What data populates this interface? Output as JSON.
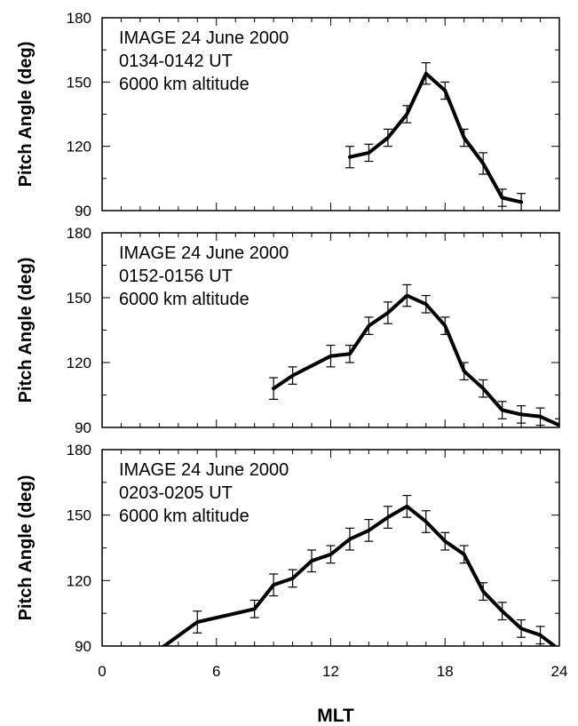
{
  "chart_data": [
    {
      "type": "line",
      "ylabel": "Pitch Angle (deg)",
      "xlim": [
        0,
        24
      ],
      "ylim": [
        90,
        180
      ],
      "yticks": [
        "90",
        "120",
        "150",
        "180"
      ],
      "xticks": [],
      "annotation": [
        "IMAGE 24 June 2000",
        "0134-0142 UT",
        "6000 km altitude"
      ],
      "series": [
        {
          "x": [
            13,
            14,
            15,
            16,
            17,
            18,
            19,
            20,
            21,
            22
          ],
          "y": [
            115,
            117,
            124,
            135,
            154,
            146,
            124,
            112,
            96,
            94
          ],
          "err": [
            5,
            4,
            4,
            4,
            5,
            4,
            4,
            5,
            4,
            4
          ]
        }
      ]
    },
    {
      "type": "line",
      "ylabel": "Pitch Angle (deg)",
      "xlim": [
        0,
        24
      ],
      "ylim": [
        90,
        180
      ],
      "yticks": [
        "90",
        "120",
        "150",
        "180"
      ],
      "xticks": [],
      "annotation": [
        "IMAGE 24 June 2000",
        "0152-0156 UT",
        "6000 km altitude"
      ],
      "series": [
        {
          "x": [
            9,
            10,
            12,
            13,
            14,
            15,
            16,
            17,
            18,
            19,
            20,
            21,
            22,
            23,
            24
          ],
          "y": [
            108,
            114,
            123,
            124,
            137,
            143,
            151,
            147,
            137,
            116,
            108,
            98,
            96,
            95,
            91
          ],
          "err": [
            5,
            4,
            5,
            4,
            4,
            5,
            5,
            4,
            4,
            4,
            4,
            4,
            4,
            4,
            3
          ]
        }
      ]
    },
    {
      "type": "line",
      "ylabel": "Pitch Angle (deg)",
      "xlim": [
        0,
        24
      ],
      "ylim": [
        90,
        180
      ],
      "yticks": [
        "90",
        "120",
        "150",
        "180"
      ],
      "xticks": [
        "0",
        "6",
        "12",
        "18",
        "24"
      ],
      "xlabel": "MLT",
      "annotation": [
        "IMAGE 24 June 2000",
        "0203-0205 UT",
        "6000 km altitude"
      ],
      "series": [
        {
          "x": [
            3.1,
            5,
            8,
            9,
            10,
            11,
            12,
            13,
            14,
            15,
            16,
            17,
            18,
            19,
            20,
            21,
            22,
            23,
            23.9
          ],
          "y": [
            89,
            101,
            107,
            118,
            121,
            129,
            132,
            139,
            143,
            149,
            154,
            147,
            138,
            132,
            115,
            106,
            98,
            95,
            89
          ],
          "err": [
            0,
            5,
            4,
            5,
            4,
            5,
            4,
            5,
            5,
            5,
            5,
            5,
            4,
            4,
            4,
            4,
            4,
            4,
            0
          ]
        }
      ]
    }
  ]
}
